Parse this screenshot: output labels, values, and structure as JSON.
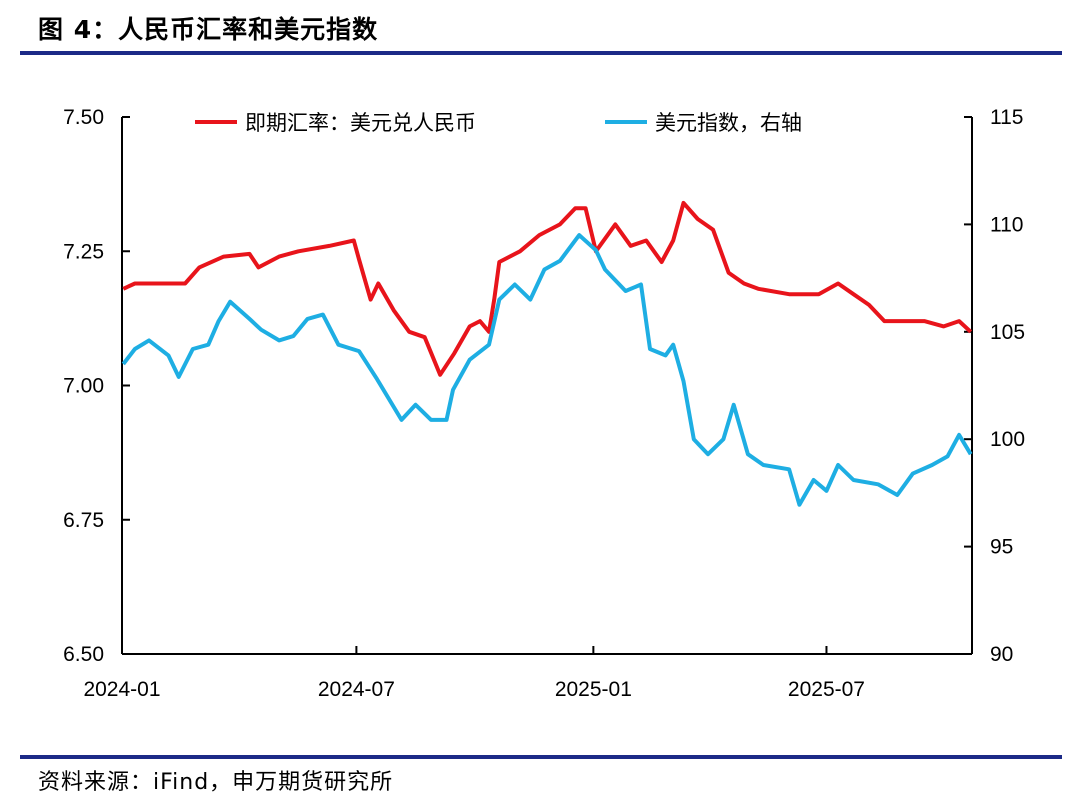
{
  "title": "图 4：人民币汇率和美元指数",
  "source": "资料来源：iFind，申万期货研究所",
  "chart_data": {
    "type": "line",
    "title": "人民币汇率和美元指数",
    "x_range": [
      "2024-01-01",
      "2025-10-22"
    ],
    "x_ticks": [
      "2024-01",
      "2024-07",
      "2025-01",
      "2025-07"
    ],
    "x_tick_dates": [
      "2024-01-01",
      "2024-07-01",
      "2025-01-01",
      "2025-07-01"
    ],
    "y_left": {
      "ylim": [
        6.5,
        7.5
      ],
      "ticks": [
        "7.50",
        "7.25",
        "7.00",
        "6.75",
        "6.50"
      ]
    },
    "y_right": {
      "ylim": [
        90,
        115
      ],
      "ticks": [
        "115",
        "110",
        "105",
        "100",
        "95",
        "90"
      ]
    },
    "legend_placement": "top",
    "grid": false,
    "series": [
      {
        "name": "即期汇率：美元兑人民币",
        "axis": "left",
        "color": "#e8141b",
        "points": [
          [
            "2024-01-02",
            7.18
          ],
          [
            "2024-01-11",
            7.19
          ],
          [
            "2024-01-30",
            7.19
          ],
          [
            "2024-02-19",
            7.19
          ],
          [
            "2024-03-01",
            7.22
          ],
          [
            "2024-03-20",
            7.24
          ],
          [
            "2024-04-09",
            7.245
          ],
          [
            "2024-04-16",
            7.22
          ],
          [
            "2024-05-02",
            7.24
          ],
          [
            "2024-05-17",
            7.25
          ],
          [
            "2024-06-10",
            7.26
          ],
          [
            "2024-06-29",
            7.27
          ],
          [
            "2024-07-03",
            7.235
          ],
          [
            "2024-07-12",
            7.16
          ],
          [
            "2024-07-18",
            7.19
          ],
          [
            "2024-07-30",
            7.14
          ],
          [
            "2024-08-11",
            7.1
          ],
          [
            "2024-08-23",
            7.09
          ],
          [
            "2024-09-04",
            7.02
          ],
          [
            "2024-09-15",
            7.06
          ],
          [
            "2024-09-27",
            7.11
          ],
          [
            "2024-10-05",
            7.12
          ],
          [
            "2024-10-12",
            7.1
          ],
          [
            "2024-10-16",
            7.16
          ],
          [
            "2024-10-20",
            7.23
          ],
          [
            "2024-11-05",
            7.25
          ],
          [
            "2024-11-20",
            7.28
          ],
          [
            "2024-12-06",
            7.3
          ],
          [
            "2024-12-18",
            7.33
          ],
          [
            "2024-12-26",
            7.33
          ],
          [
            "2025-01-03",
            7.25
          ],
          [
            "2025-01-18",
            7.3
          ],
          [
            "2025-01-30",
            7.26
          ],
          [
            "2025-02-11",
            7.27
          ],
          [
            "2025-02-23",
            7.23
          ],
          [
            "2025-03-04",
            7.27
          ],
          [
            "2025-03-12",
            7.34
          ],
          [
            "2025-03-23",
            7.31
          ],
          [
            "2025-04-04",
            7.29
          ],
          [
            "2025-04-16",
            7.21
          ],
          [
            "2025-04-28",
            7.19
          ],
          [
            "2025-05-09",
            7.18
          ],
          [
            "2025-06-02",
            7.17
          ],
          [
            "2025-06-25",
            7.17
          ],
          [
            "2025-07-10",
            7.19
          ],
          [
            "2025-07-22",
            7.17
          ],
          [
            "2025-08-03",
            7.15
          ],
          [
            "2025-08-15",
            7.12
          ],
          [
            "2025-08-30",
            7.12
          ],
          [
            "2025-09-15",
            7.12
          ],
          [
            "2025-09-30",
            7.11
          ],
          [
            "2025-10-12",
            7.12
          ],
          [
            "2025-10-21",
            7.1
          ]
        ]
      },
      {
        "name": "美元指数，右轴",
        "axis": "right",
        "color": "#1eaee3",
        "points": [
          [
            "2024-01-02",
            103.5
          ],
          [
            "2024-01-11",
            104.2
          ],
          [
            "2024-01-22",
            104.6
          ],
          [
            "2024-02-06",
            103.9
          ],
          [
            "2024-02-14",
            102.9
          ],
          [
            "2024-02-25",
            104.2
          ],
          [
            "2024-03-08",
            104.4
          ],
          [
            "2024-03-16",
            105.5
          ],
          [
            "2024-03-25",
            106.4
          ],
          [
            "2024-04-09",
            105.6
          ],
          [
            "2024-04-18",
            105.1
          ],
          [
            "2024-05-02",
            104.6
          ],
          [
            "2024-05-13",
            104.8
          ],
          [
            "2024-05-24",
            105.6
          ],
          [
            "2024-06-05",
            105.8
          ],
          [
            "2024-06-17",
            104.4
          ],
          [
            "2024-07-03",
            104.1
          ],
          [
            "2024-07-17",
            102.8
          ],
          [
            "2024-08-05",
            100.9
          ],
          [
            "2024-08-16",
            101.6
          ],
          [
            "2024-08-28",
            100.9
          ],
          [
            "2024-09-09",
            100.9
          ],
          [
            "2024-09-14",
            102.3
          ],
          [
            "2024-09-27",
            103.7
          ],
          [
            "2024-10-12",
            104.4
          ],
          [
            "2024-10-20",
            106.5
          ],
          [
            "2024-11-01",
            107.2
          ],
          [
            "2024-11-13",
            106.5
          ],
          [
            "2024-11-24",
            107.9
          ],
          [
            "2024-12-06",
            108.3
          ],
          [
            "2024-12-21",
            109.5
          ],
          [
            "2025-01-03",
            108.8
          ],
          [
            "2025-01-10",
            107.9
          ],
          [
            "2025-01-26",
            106.9
          ],
          [
            "2025-02-07",
            107.2
          ],
          [
            "2025-02-14",
            104.2
          ],
          [
            "2025-02-26",
            103.9
          ],
          [
            "2025-03-04",
            104.4
          ],
          [
            "2025-03-12",
            102.7
          ],
          [
            "2025-03-20",
            100.0
          ],
          [
            "2025-03-31",
            99.3
          ],
          [
            "2025-04-12",
            100.0
          ],
          [
            "2025-04-20",
            101.6
          ],
          [
            "2025-05-01",
            99.3
          ],
          [
            "2025-05-13",
            98.8
          ],
          [
            "2025-06-02",
            98.6
          ],
          [
            "2025-06-10",
            96.95
          ],
          [
            "2025-06-21",
            98.1
          ],
          [
            "2025-07-01",
            97.6
          ],
          [
            "2025-07-10",
            98.8
          ],
          [
            "2025-07-22",
            98.1
          ],
          [
            "2025-08-10",
            97.9
          ],
          [
            "2025-08-25",
            97.4
          ],
          [
            "2025-09-06",
            98.4
          ],
          [
            "2025-09-21",
            98.8
          ],
          [
            "2025-10-03",
            99.2
          ],
          [
            "2025-10-12",
            100.2
          ],
          [
            "2025-10-21",
            99.3
          ]
        ]
      }
    ]
  }
}
